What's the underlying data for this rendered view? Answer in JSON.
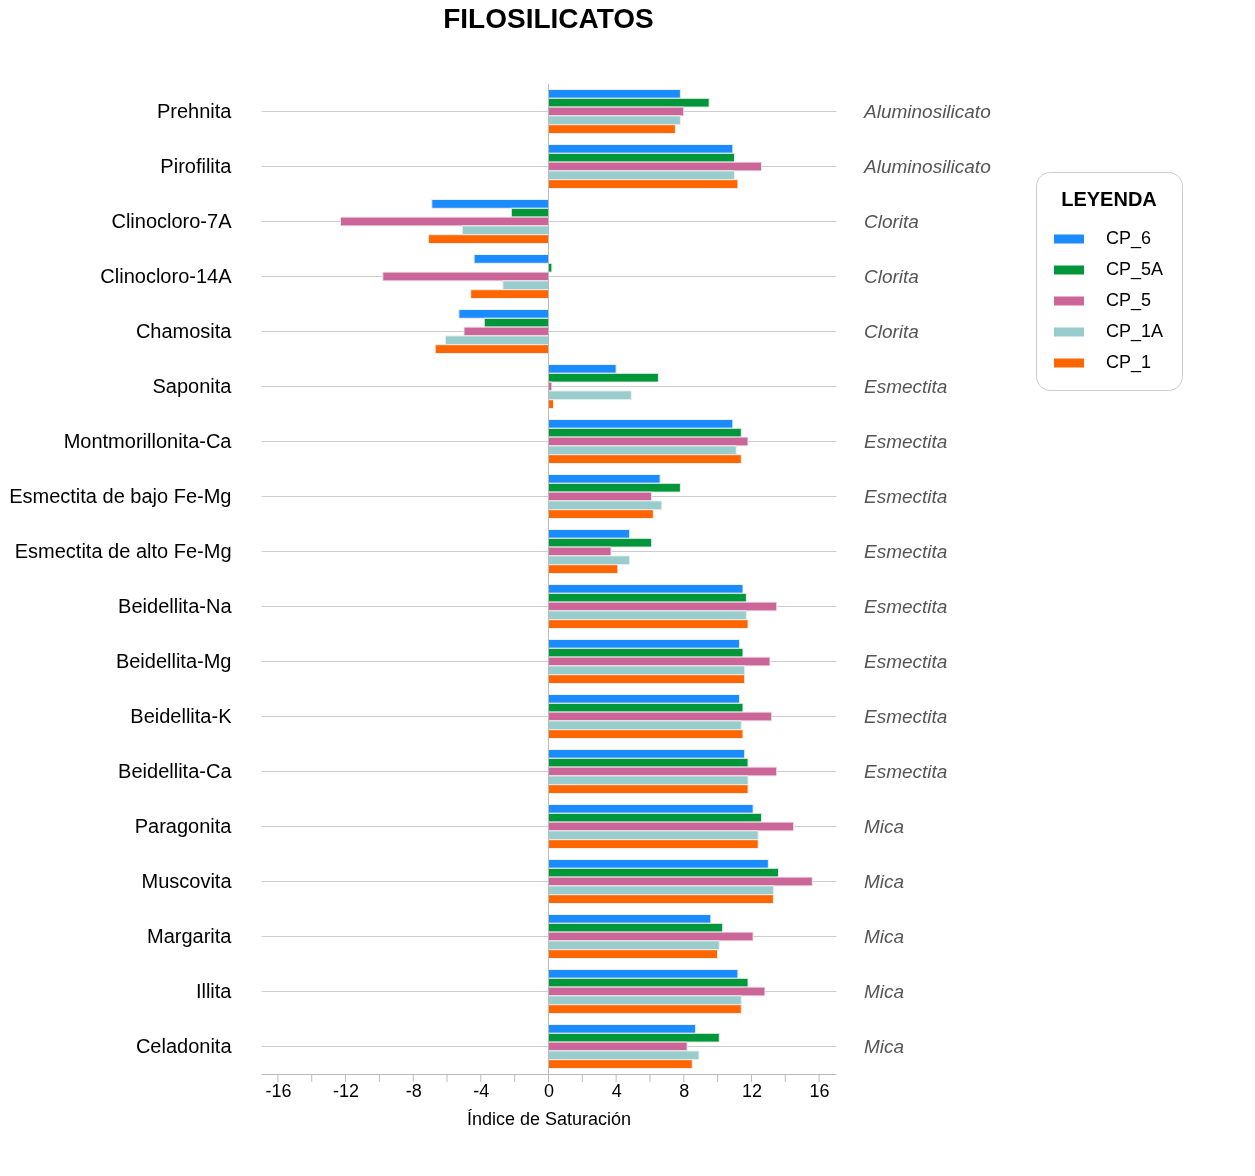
{
  "chart_data": {
    "type": "bar",
    "orientation": "horizontal",
    "title": "FILOSILICATOS",
    "xlabel": "Índice de Saturación",
    "legend_title": "LEYENDA",
    "categories": [
      "Prehnita",
      "Pirofilita",
      "Clinocloro-7A",
      "Clinocloro-14A",
      "Chamosita",
      "Saponita",
      "Montmorillonita-Ca",
      "Esmectita de bajo Fe-Mg",
      "Esmectita de alto Fe-Mg",
      "Beidellita-Na",
      "Beidellita-Mg",
      "Beidellita-K",
      "Beidellita-Ca",
      "Paragonita",
      "Muscovita",
      "Margarita",
      "Illita",
      "Celadonita"
    ],
    "y2_categories": [
      "Aluminosilicato",
      "Aluminosilicato",
      "Clorita",
      "Clorita",
      "Clorita",
      "Esmectita",
      "Esmectita",
      "Esmectita",
      "Esmectita",
      "Esmectita",
      "Esmectita",
      "Esmectita",
      "Esmectita",
      "Mica",
      "Mica",
      "Mica",
      "Mica",
      "Mica"
    ],
    "series": [
      {
        "name": "CP_6",
        "color": "#1a8cff",
        "values": [
          7.8,
          10.9,
          -6.9,
          -4.4,
          -5.3,
          4.0,
          10.9,
          6.6,
          4.8,
          11.5,
          11.3,
          11.3,
          11.6,
          12.1,
          13.0,
          9.6,
          11.2,
          8.7
        ]
      },
      {
        "name": "CP_5A",
        "color": "#00963a",
        "values": [
          9.5,
          11.0,
          -2.2,
          0.2,
          -3.8,
          6.5,
          11.4,
          7.8,
          6.1,
          11.7,
          11.5,
          11.5,
          11.8,
          12.6,
          13.6,
          10.3,
          11.8,
          10.1
        ]
      },
      {
        "name": "CP_5",
        "color": "#cc6699",
        "values": [
          8.0,
          12.6,
          -12.3,
          -9.8,
          -5.0,
          0.2,
          11.8,
          6.1,
          3.7,
          13.5,
          13.1,
          13.2,
          13.5,
          14.5,
          15.6,
          12.1,
          12.8,
          8.2
        ]
      },
      {
        "name": "CP_1A",
        "color": "#99cccc",
        "values": [
          7.8,
          11.0,
          -5.1,
          -2.7,
          -6.1,
          4.9,
          11.1,
          6.7,
          4.8,
          11.7,
          11.6,
          11.4,
          11.8,
          12.4,
          13.3,
          10.1,
          11.4,
          8.9
        ]
      },
      {
        "name": "CP_1",
        "color": "#ff6600",
        "values": [
          7.5,
          11.2,
          -7.1,
          -4.6,
          -6.7,
          0.3,
          11.4,
          6.2,
          4.1,
          11.8,
          11.6,
          11.5,
          11.8,
          12.4,
          13.3,
          10.0,
          11.4,
          8.5
        ]
      }
    ],
    "xlim": [
      -17,
      17
    ],
    "xticks": [
      -16,
      {
        "value": -14,
        "label": null
      },
      -12,
      {
        "value": -10,
        "label": null
      },
      -8,
      {
        "value": -6,
        "label": null
      },
      -4,
      {
        "value": -2,
        "label": null
      },
      0,
      {
        "value": 2,
        "label": null
      },
      4,
      {
        "value": 6,
        "label": null
      },
      8,
      {
        "value": 10,
        "label": null
      },
      12,
      {
        "value": 14,
        "label": null
      },
      16
    ],
    "ref_lines": [
      {
        "axis": "x",
        "value": 0,
        "color": "#bbbbbb"
      }
    ],
    "grid": "y",
    "legend": "top right"
  }
}
